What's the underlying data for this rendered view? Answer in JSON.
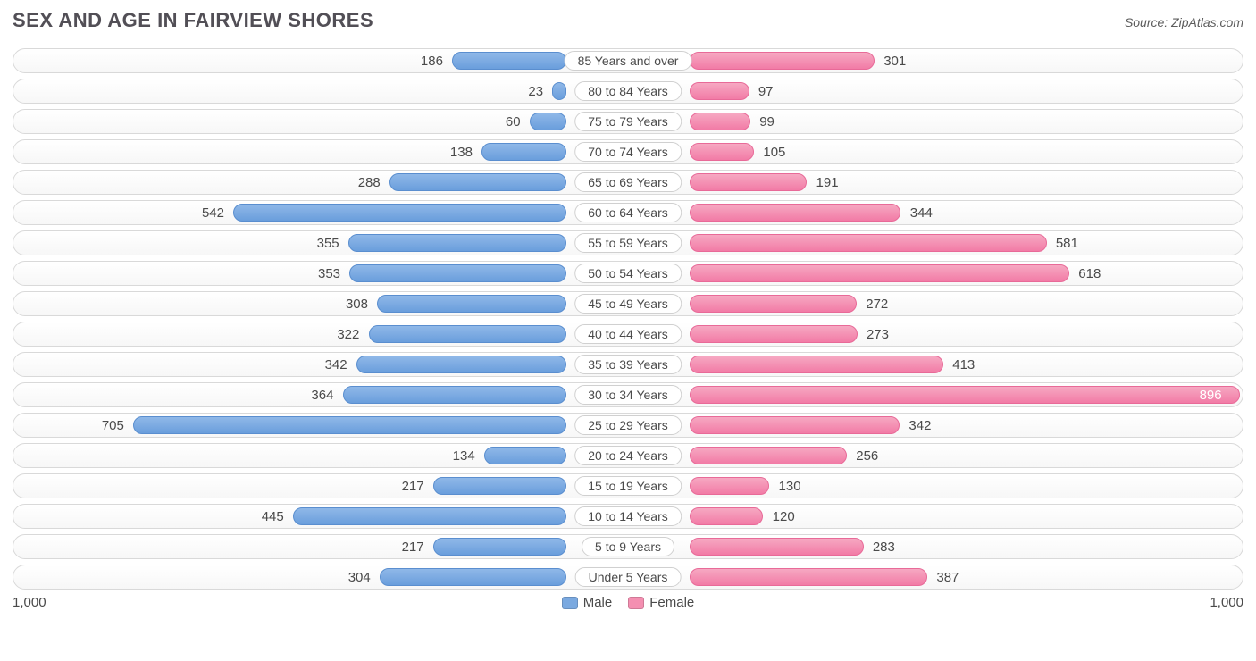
{
  "title": "SEX AND AGE IN FAIRVIEW SHORES",
  "source": "Source: ZipAtlas.com",
  "chart": {
    "type": "population-pyramid",
    "axis_max": 1000,
    "axis_label_left": "1,000",
    "axis_label_right": "1,000",
    "male_color": "#7aa9e0",
    "female_color": "#f48fb1",
    "background_color": "#ffffff",
    "row_border_color": "#d9d9d9",
    "label_pill_bg": "#ffffff",
    "title_fontsize": 22,
    "value_fontsize": 15,
    "legend": {
      "male": "Male",
      "female": "Female"
    },
    "rows": [
      {
        "label": "85 Years and over",
        "male": 186,
        "female": 301
      },
      {
        "label": "80 to 84 Years",
        "male": 23,
        "female": 97
      },
      {
        "label": "75 to 79 Years",
        "male": 60,
        "female": 99
      },
      {
        "label": "70 to 74 Years",
        "male": 138,
        "female": 105
      },
      {
        "label": "65 to 69 Years",
        "male": 288,
        "female": 191
      },
      {
        "label": "60 to 64 Years",
        "male": 542,
        "female": 344
      },
      {
        "label": "55 to 59 Years",
        "male": 355,
        "female": 581
      },
      {
        "label": "50 to 54 Years",
        "male": 353,
        "female": 618
      },
      {
        "label": "45 to 49 Years",
        "male": 308,
        "female": 272
      },
      {
        "label": "40 to 44 Years",
        "male": 322,
        "female": 273
      },
      {
        "label": "35 to 39 Years",
        "male": 342,
        "female": 413
      },
      {
        "label": "30 to 34 Years",
        "male": 364,
        "female": 896
      },
      {
        "label": "25 to 29 Years",
        "male": 705,
        "female": 342
      },
      {
        "label": "20 to 24 Years",
        "male": 134,
        "female": 256
      },
      {
        "label": "15 to 19 Years",
        "male": 217,
        "female": 130
      },
      {
        "label": "10 to 14 Years",
        "male": 445,
        "female": 120
      },
      {
        "label": "5 to 9 Years",
        "male": 217,
        "female": 283
      },
      {
        "label": "Under 5 Years",
        "male": 304,
        "female": 387
      }
    ]
  }
}
